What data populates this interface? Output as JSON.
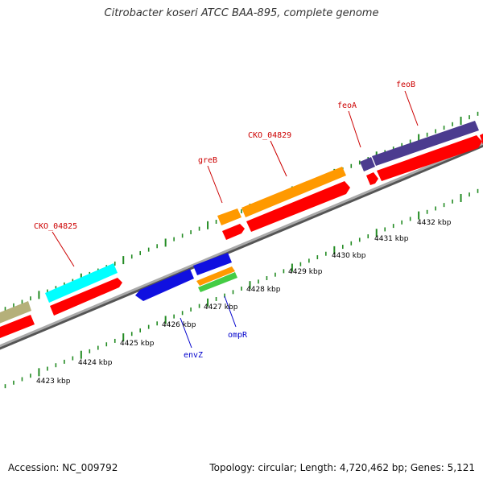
{
  "header": {
    "title": "Citrobacter koseri ATCC BAA-895, complete genome"
  },
  "footer": {
    "accession": "Accession: NC_009792",
    "summary": "Topology: circular; Length: 4,720,462 bp; Genes: 5,121"
  },
  "colors": {
    "forward_label": "#cc0000",
    "reverse_label": "#0000cc",
    "cds": "#ff0000",
    "tick": "#228b22",
    "backbone": "#888888"
  },
  "scale": {
    "unit": "kbp",
    "ticks": [
      "4423 kbp",
      "4424 kbp",
      "4425 kbp",
      "4426 kbp",
      "4427 kbp",
      "4428 kbp",
      "4429 kbp",
      "4430 kbp",
      "4431 kbp",
      "4432 kbp"
    ]
  },
  "genes": [
    {
      "name": "CKO_04825",
      "strand": "forward",
      "color": "#00ffff"
    },
    {
      "name": "greB",
      "strand": "forward",
      "color": "#ff9900"
    },
    {
      "name": "CKO_04829",
      "strand": "forward",
      "color": "#ff9900"
    },
    {
      "name": "feoA",
      "strand": "forward",
      "color": "#4b3b8f"
    },
    {
      "name": "feoB",
      "strand": "forward",
      "color": "#4b3b8f"
    },
    {
      "name": "envZ",
      "strand": "reverse",
      "color": "#1010e0"
    },
    {
      "name": "ompR",
      "strand": "reverse",
      "color": "#1010e0"
    }
  ]
}
